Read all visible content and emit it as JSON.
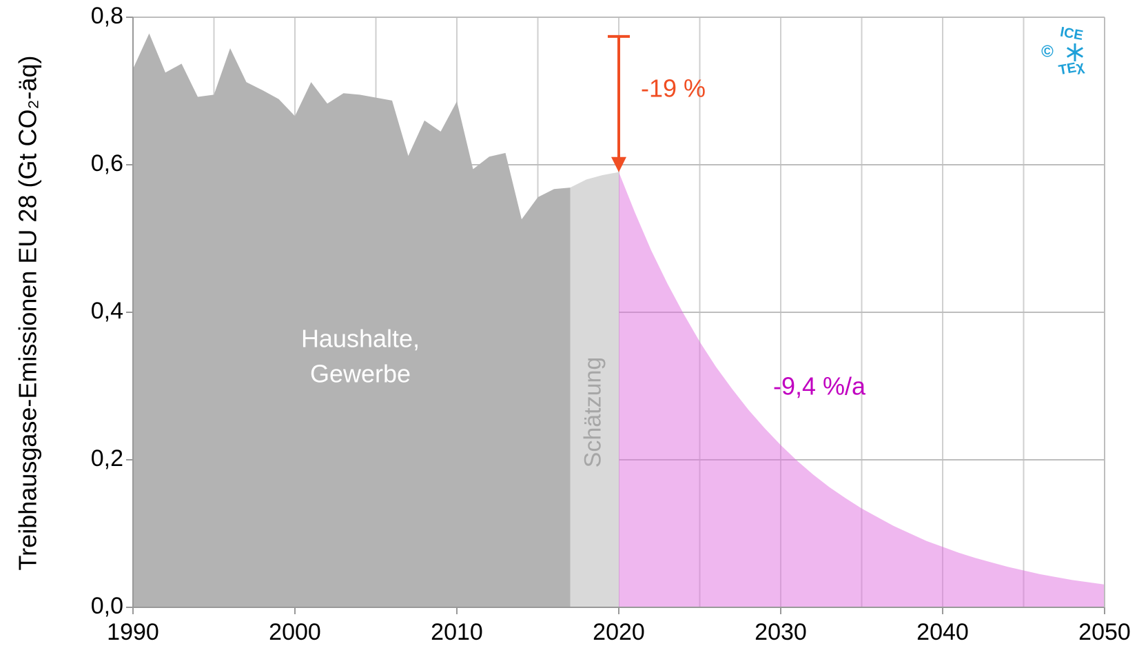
{
  "chart_data": {
    "type": "area",
    "y_label": "Treibhausgase-Emissionen EU 28 (Gt CO₂-äq)",
    "xlim": [
      1990,
      2050
    ],
    "xticks": [
      1990,
      2000,
      2010,
      2020,
      2030,
      2040,
      2050
    ],
    "xminorticks": [
      1995,
      2005,
      2015,
      2025,
      2035,
      2045
    ],
    "ylim": [
      0,
      0.8
    ],
    "yticks": [
      {
        "value": 0,
        "label": "0,0"
      },
      {
        "value": 0.2,
        "label": "0,2"
      },
      {
        "value": 0.4,
        "label": "0,4"
      },
      {
        "value": 0.6,
        "label": "0,6"
      },
      {
        "value": 0.8,
        "label": "0,8"
      }
    ],
    "grid": true,
    "series": [
      {
        "name": "Haushalte, Gewerbe",
        "label_lines": [
          "Haushalte,",
          "Gewerbe"
        ],
        "color": "#b3b3b3",
        "x": [
          1990,
          1991,
          1992,
          1993,
          1994,
          1995,
          1996,
          1997,
          1998,
          1999,
          2000,
          2001,
          2002,
          2003,
          2004,
          2005,
          2006,
          2007,
          2008,
          2009,
          2010,
          2011,
          2012,
          2013,
          2014,
          2015,
          2016,
          2017
        ],
        "values": [
          0.73,
          0.778,
          0.725,
          0.737,
          0.692,
          0.695,
          0.758,
          0.712,
          0.701,
          0.689,
          0.666,
          0.712,
          0.683,
          0.697,
          0.695,
          0.691,
          0.687,
          0.612,
          0.66,
          0.645,
          0.686,
          0.594,
          0.611,
          0.616,
          0.526,
          0.556,
          0.567,
          0.569
        ]
      },
      {
        "name": "Schätzung",
        "color": "#d9d9d9",
        "x": [
          2017,
          2018,
          2019,
          2020
        ],
        "values": [
          0.569,
          0.58,
          0.586,
          0.59
        ]
      },
      {
        "name": "-9,4 %/a",
        "color": "#e070e0",
        "x": [
          2020,
          2021,
          2022,
          2023,
          2024,
          2025,
          2026,
          2027,
          2028,
          2029,
          2030,
          2031,
          2032,
          2033,
          2034,
          2035,
          2036,
          2037,
          2038,
          2039,
          2040,
          2041,
          2042,
          2043,
          2044,
          2045,
          2046,
          2047,
          2048,
          2049,
          2050
        ],
        "values": [
          0.59,
          0.535,
          0.484,
          0.439,
          0.398,
          0.36,
          0.326,
          0.296,
          0.268,
          0.243,
          0.22,
          0.199,
          0.18,
          0.163,
          0.148,
          0.134,
          0.122,
          0.11,
          0.1,
          0.09,
          0.082,
          0.074,
          0.067,
          0.061,
          0.055,
          0.05,
          0.045,
          0.041,
          0.037,
          0.034,
          0.031
        ]
      }
    ],
    "annotation": {
      "text": "-19 %",
      "x": 2020,
      "from": 0.774,
      "to": 0.59,
      "color": "#f04e23"
    },
    "logo": [
      "ICE",
      "TEχ",
      "©"
    ]
  }
}
